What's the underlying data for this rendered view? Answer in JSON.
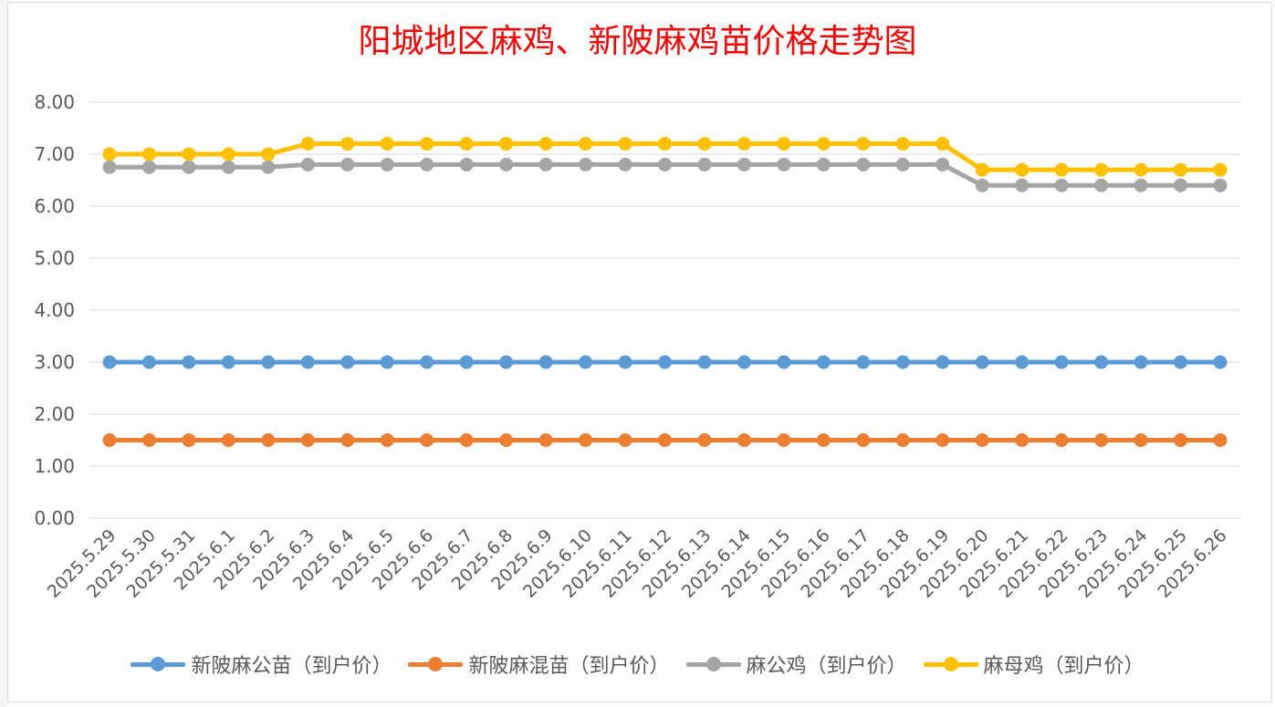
{
  "chart_data": {
    "type": "line",
    "title": "阳城地区麻鸡、新陂麻鸡苗价格走势图",
    "xlabel": "",
    "ylabel": "",
    "ylim": [
      0,
      8
    ],
    "yticks": [
      "0.00",
      "1.00",
      "2.00",
      "3.00",
      "4.00",
      "5.00",
      "6.00",
      "7.00",
      "8.00"
    ],
    "grid": true,
    "legend_position": "bottom",
    "categories": [
      "2025.5.29",
      "2025.5.30",
      "2025.5.31",
      "2025.6.1",
      "2025.6.2",
      "2025.6.3",
      "2025.6.4",
      "2025.6.5",
      "2025.6.6",
      "2025.6.7",
      "2025.6.8",
      "2025.6.9",
      "2025.6.10",
      "2025.6.11",
      "2025.6.12",
      "2025.6.13",
      "2025.6.14",
      "2025.6.15",
      "2025.6.16",
      "2025.6.17",
      "2025.6.18",
      "2025.6.19",
      "2025.6.20",
      "2025.6.21",
      "2025.6.22",
      "2025.6.23",
      "2025.6.24",
      "2025.6.25",
      "2025.6.26"
    ],
    "series": [
      {
        "name": "新陂麻公苗（到户价）",
        "color": "#5b9bd5",
        "values": [
          3,
          3,
          3,
          3,
          3,
          3,
          3,
          3,
          3,
          3,
          3,
          3,
          3,
          3,
          3,
          3,
          3,
          3,
          3,
          3,
          3,
          3,
          3,
          3,
          3,
          3,
          3,
          3,
          3
        ]
      },
      {
        "name": "新陂麻混苗（到户价）",
        "color": "#ed7d31",
        "values": [
          1.5,
          1.5,
          1.5,
          1.5,
          1.5,
          1.5,
          1.5,
          1.5,
          1.5,
          1.5,
          1.5,
          1.5,
          1.5,
          1.5,
          1.5,
          1.5,
          1.5,
          1.5,
          1.5,
          1.5,
          1.5,
          1.5,
          1.5,
          1.5,
          1.5,
          1.5,
          1.5,
          1.5,
          1.5
        ]
      },
      {
        "name": "麻公鸡（到户价）",
        "color": "#a5a5a5",
        "values": [
          6.75,
          6.75,
          6.75,
          6.75,
          6.75,
          6.8,
          6.8,
          6.8,
          6.8,
          6.8,
          6.8,
          6.8,
          6.8,
          6.8,
          6.8,
          6.8,
          6.8,
          6.8,
          6.8,
          6.8,
          6.8,
          6.8,
          6.4,
          6.4,
          6.4,
          6.4,
          6.4,
          6.4,
          6.4
        ]
      },
      {
        "name": "麻母鸡（到户价）",
        "color": "#ffc000",
        "values": [
          7,
          7,
          7,
          7,
          7,
          7.2,
          7.2,
          7.2,
          7.2,
          7.2,
          7.2,
          7.2,
          7.2,
          7.2,
          7.2,
          7.2,
          7.2,
          7.2,
          7.2,
          7.2,
          7.2,
          7.2,
          6.7,
          6.7,
          6.7,
          6.7,
          6.7,
          6.7,
          6.7
        ]
      }
    ]
  }
}
